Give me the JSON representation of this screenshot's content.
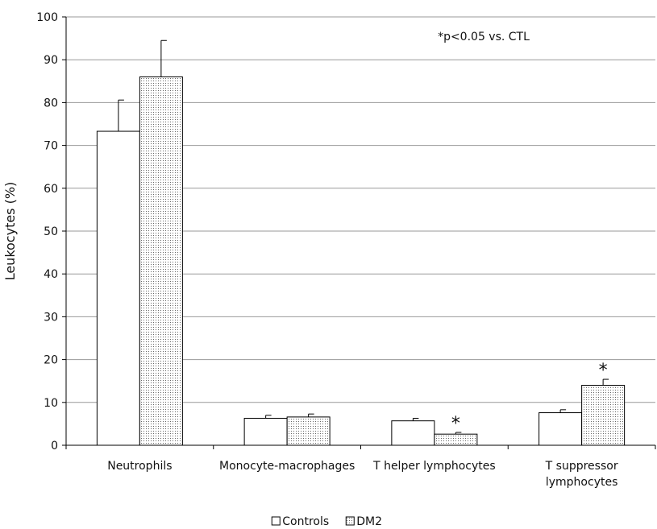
{
  "chart_data": {
    "type": "bar",
    "y_label": "Leukocytes (%)",
    "annotation": "*p<0.05 vs. CTL",
    "categories": [
      "Neutrophils",
      "Monocyte-macrophages",
      "T helper lymphocytes",
      "T suppressor\nlymphocytes"
    ],
    "series": [
      {
        "name": "Controls",
        "color": "#ffffff",
        "pattern": "solid",
        "values": [
          73.3,
          6.3,
          5.7,
          7.6
        ],
        "errors": [
          7.3,
          0.7,
          0.6,
          0.7
        ]
      },
      {
        "name": "DM2",
        "color": "#ffffff",
        "pattern": "dotted",
        "values": [
          86,
          6.6,
          2.6,
          14
        ],
        "errors": [
          8.5,
          0.7,
          0.4,
          1.4
        ]
      }
    ],
    "significance_markers": [
      {
        "series": 1,
        "category": 2,
        "text": "*"
      },
      {
        "series": 1,
        "category": 3,
        "text": "*"
      }
    ],
    "ylim": [
      0,
      100
    ],
    "yticks": [
      0,
      10,
      20,
      30,
      40,
      50,
      60,
      70,
      80,
      90,
      100
    ],
    "grid": true,
    "legend": "bottom"
  }
}
